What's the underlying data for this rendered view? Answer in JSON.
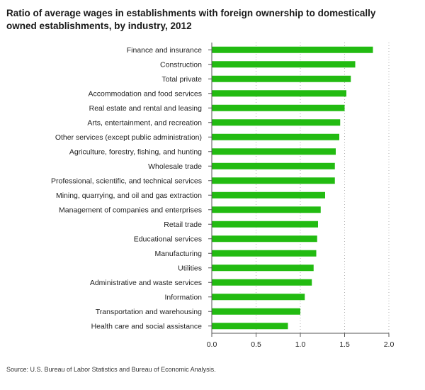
{
  "chart_data": {
    "type": "bar",
    "orientation": "horizontal",
    "title": "Ratio of average wages in establishments with foreign ownership to domestically owned establishments, by industry, 2012",
    "source": "Source: U.S. Bureau of Labor Statistics and Bureau of Economic Analysis.",
    "xlim": [
      0,
      2.0
    ],
    "xticks": [
      "0.0",
      "0.5",
      "1.0",
      "1.5",
      "2.0"
    ],
    "grid": "vertical dotted",
    "bar_color": "#22bb11",
    "categories": [
      "Finance and insurance",
      "Construction",
      "Total private",
      "Accommodation and food services",
      "Real estate and rental and leasing",
      "Arts, entertainment, and recreation",
      "Other services (except public administration)",
      "Agriculture, forestry, fishing, and hunting",
      "Wholesale trade",
      "Professional, scientific, and technical services",
      "Mining, quarrying, and oil and gas extraction",
      "Management of companies and enterprises",
      "Retail trade",
      "Educational services",
      "Manufacturing",
      "Utilities",
      "Administrative and waste services",
      "Information",
      "Transportation and warehousing",
      "Health care and social assistance"
    ],
    "values": [
      1.82,
      1.62,
      1.57,
      1.52,
      1.5,
      1.45,
      1.44,
      1.4,
      1.39,
      1.39,
      1.28,
      1.23,
      1.2,
      1.19,
      1.18,
      1.15,
      1.13,
      1.05,
      1.0,
      0.86
    ]
  }
}
